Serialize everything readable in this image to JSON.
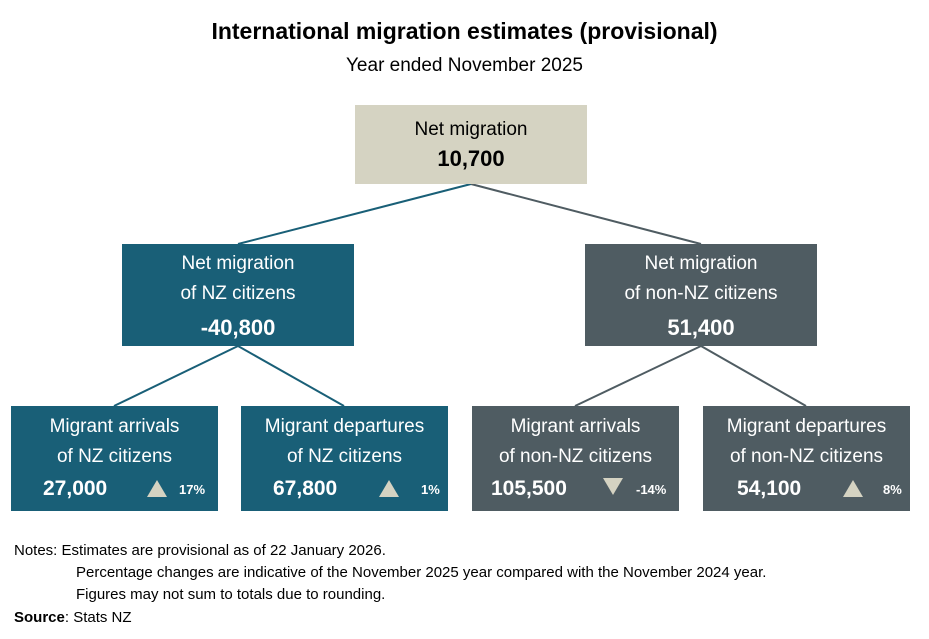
{
  "title": "International migration estimates (provisional)",
  "subtitle": "Year ended November 2025",
  "root": {
    "label": "Net migration",
    "value": "10,700"
  },
  "nz": {
    "label_line1": "Net migration",
    "label_line2": "of NZ citizens",
    "value": "-40,800"
  },
  "non_nz": {
    "label_line1": "Net migration",
    "label_line2": "of non-NZ citizens",
    "value": "51,400"
  },
  "leaves": [
    {
      "line1": "Migrant arrivals",
      "line2": "of NZ citizens",
      "value": "27,000",
      "direction": "up",
      "change": "17%"
    },
    {
      "line1": "Migrant departures",
      "line2": "of NZ citizens",
      "value": "67,800",
      "direction": "up",
      "change": "1%"
    },
    {
      "line1": "Migrant arrivals",
      "line2": "of non-NZ citizens",
      "value": "105,500",
      "direction": "down",
      "change": "-14%"
    },
    {
      "line1": "Migrant departures",
      "line2": "of non-NZ citizens",
      "value": "54,100",
      "direction": "up",
      "change": "8%"
    }
  ],
  "notes": {
    "prefix": "Notes:",
    "line1": "Estimates are provisional as of 22 January 2026.",
    "line2": "Percentage changes are indicative of the November 2025 year compared with the November 2024 year.",
    "line3": "Figures may not sum to totals due to rounding."
  },
  "source": {
    "label": "Source",
    "text": ": Stats NZ"
  },
  "colors": {
    "nz": "#195f77",
    "non_nz": "#4f5c62",
    "root": "#d5d3c2",
    "triangle": "#d5d3c2"
  }
}
